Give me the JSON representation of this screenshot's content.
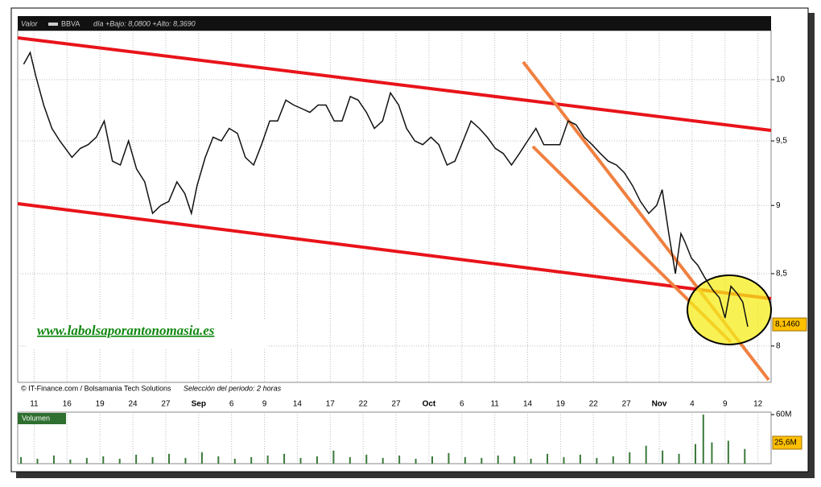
{
  "chart_data": [
    {
      "type": "line",
      "title": "Valor",
      "symbol": "BBVA",
      "subtitle": "día +Bajo: 8,0800 +Alto: 8,3690",
      "source": "© IT-Finance.com / Bolsamania Tech Solutions",
      "period": "Selección del periodo: 2 horas",
      "watermark": "www.labolsaporantonomasia.es",
      "color": "#111111",
      "log_scale": true,
      "grid": true,
      "xlim": [
        -0.5,
        22.4
      ],
      "ylim": [
        7.76,
        10.42
      ],
      "xticks": [
        {
          "value": 0,
          "label": "11"
        },
        {
          "value": 1,
          "label": "16"
        },
        {
          "value": 2,
          "label": "19"
        },
        {
          "value": 3,
          "label": "24"
        },
        {
          "value": 4,
          "label": "27"
        },
        {
          "value": 5,
          "label": "Sep"
        },
        {
          "value": 6,
          "label": "6"
        },
        {
          "value": 7,
          "label": "9"
        },
        {
          "value": 8,
          "label": "14"
        },
        {
          "value": 9,
          "label": "17"
        },
        {
          "value": 10,
          "label": "22"
        },
        {
          "value": 11,
          "label": "27"
        },
        {
          "value": 12,
          "label": "Oct"
        },
        {
          "value": 13,
          "label": "6"
        },
        {
          "value": 14,
          "label": "11"
        },
        {
          "value": 15,
          "label": "14"
        },
        {
          "value": 16,
          "label": "19"
        },
        {
          "value": 17,
          "label": "22"
        },
        {
          "value": 18,
          "label": "27"
        },
        {
          "value": 19,
          "label": "Nov"
        },
        {
          "value": 20,
          "label": "4"
        },
        {
          "value": 21,
          "label": "9"
        },
        {
          "value": 22,
          "label": "12"
        }
      ],
      "yticks": [
        8,
        {
          "value": 8.5,
          "label": "8,5"
        },
        9,
        {
          "value": 9.5,
          "label": "9,5"
        },
        10
      ],
      "x": [
        -0.32,
        -0.12,
        0.05,
        0.29,
        0.54,
        0.78,
        1.15,
        1.4,
        1.64,
        1.89,
        2.13,
        2.38,
        2.62,
        2.87,
        3.11,
        3.36,
        3.6,
        3.85,
        4.09,
        4.34,
        4.58,
        4.78,
        4.95,
        5.2,
        5.44,
        5.69,
        5.93,
        6.18,
        6.42,
        6.67,
        6.91,
        7.16,
        7.4,
        7.65,
        7.89,
        8.14,
        8.38,
        8.63,
        8.87,
        9.12,
        9.36,
        9.61,
        9.85,
        10.1,
        10.34,
        10.59,
        10.83,
        11.08,
        11.32,
        11.57,
        11.81,
        12.06,
        12.3,
        12.55,
        12.79,
        13.04,
        13.28,
        13.53,
        13.77,
        14.02,
        14.26,
        14.51,
        14.75,
        15.0,
        15.25,
        15.49,
        15.74,
        15.98,
        16.23,
        16.47,
        16.72,
        16.96,
        17.21,
        17.45,
        17.7,
        17.94,
        18.19,
        18.43,
        18.68,
        18.92,
        19.09,
        19.29,
        19.49,
        19.66,
        19.78,
        19.98,
        20.17,
        20.39,
        20.64,
        20.83,
        21.0,
        21.18,
        21.37,
        21.54,
        21.69
      ],
      "values": [
        10.13,
        10.23,
        10.03,
        9.79,
        9.6,
        9.5,
        9.37,
        9.44,
        9.47,
        9.53,
        9.66,
        9.34,
        9.31,
        9.5,
        9.28,
        9.18,
        8.94,
        9.0,
        9.03,
        9.18,
        9.09,
        8.94,
        9.15,
        9.37,
        9.53,
        9.5,
        9.6,
        9.56,
        9.37,
        9.31,
        9.47,
        9.66,
        9.66,
        9.83,
        9.79,
        9.76,
        9.73,
        9.79,
        9.79,
        9.66,
        9.66,
        9.86,
        9.83,
        9.73,
        9.6,
        9.66,
        9.89,
        9.79,
        9.6,
        9.5,
        9.47,
        9.53,
        9.47,
        9.31,
        9.34,
        9.5,
        9.66,
        9.6,
        9.53,
        9.44,
        9.4,
        9.31,
        9.4,
        9.5,
        9.6,
        9.47,
        9.47,
        9.47,
        9.66,
        9.63,
        9.53,
        9.47,
        9.4,
        9.34,
        9.31,
        9.25,
        9.15,
        9.03,
        8.94,
        9.0,
        9.12,
        8.79,
        8.5,
        8.79,
        8.73,
        8.61,
        8.56,
        8.47,
        8.38,
        8.33,
        8.19,
        8.41,
        8.36,
        8.3,
        8.13
      ],
      "last_value": {
        "value": 8.146,
        "label": "8,1460"
      }
    },
    {
      "type": "bar",
      "title": "Volumen",
      "color": "#3a7a3a",
      "ylim": [
        0,
        63
      ],
      "yticks": [
        {
          "value": 60,
          "label": "60M"
        }
      ],
      "x": [
        -0.4,
        0.1,
        0.6,
        1.1,
        1.6,
        2.1,
        2.6,
        3.1,
        3.6,
        4.1,
        4.6,
        5.1,
        5.6,
        6.1,
        6.6,
        7.1,
        7.6,
        8.1,
        8.6,
        9.1,
        9.6,
        10.1,
        10.6,
        11.1,
        11.6,
        12.1,
        12.6,
        13.1,
        13.6,
        14.1,
        14.6,
        15.1,
        15.6,
        16.1,
        16.6,
        17.1,
        17.6,
        18.1,
        18.6,
        19.1,
        19.6,
        20.1,
        20.34,
        20.6,
        21.1,
        21.6
      ],
      "values": [
        8,
        6,
        10,
        5,
        7,
        9,
        6,
        11,
        8,
        12,
        7,
        14,
        9,
        6,
        8,
        10,
        12,
        7,
        9,
        16,
        8,
        11,
        7,
        10,
        6,
        9,
        13,
        8,
        7,
        10,
        9,
        6,
        12,
        8,
        11,
        7,
        9,
        14,
        22,
        16,
        12,
        24,
        60,
        26,
        28,
        18
      ],
      "last_value": {
        "value": 25.6,
        "label": "25,6M"
      }
    }
  ]
}
